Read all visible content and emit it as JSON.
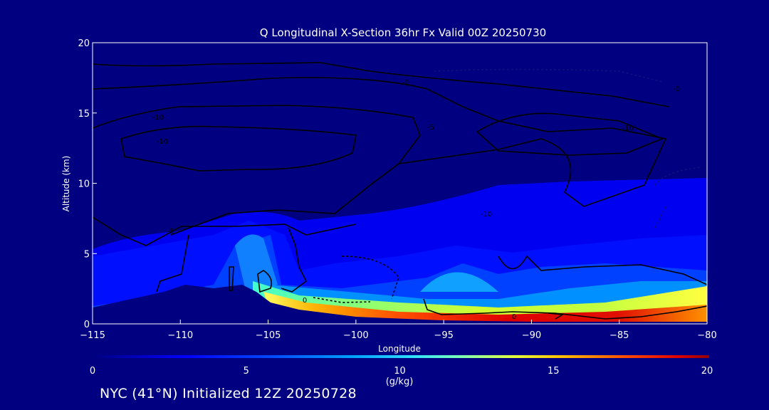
{
  "chart_data": {
    "type": "heatmap",
    "title": "Q Longitudinal X-Section 36hr  Fx Valid 00Z 20250730",
    "xlabel": "Longitude",
    "ylabel": "Altitude (km)",
    "xlim": [
      -115,
      -80
    ],
    "ylim": [
      0,
      20
    ],
    "x_ticks": [
      "-115",
      "-110",
      "-105",
      "-100",
      "-95",
      "-90",
      "-85",
      "-80"
    ],
    "y_ticks": [
      "0",
      "5",
      "10",
      "15",
      "20"
    ],
    "colorbar": {
      "label": "(g/kg)",
      "range": [
        0,
        20
      ],
      "ticks": [
        "0",
        "5",
        "10",
        "15",
        "20"
      ],
      "colors": [
        "#000080",
        "#0000ff",
        "#0060ff",
        "#00c0ff",
        "#40ffc0",
        "#c0ff40",
        "#ffd000",
        "#ff6000",
        "#e00000",
        "#800000"
      ]
    },
    "contour_labels": [
      "0",
      "0",
      "-0",
      "-5",
      "-10",
      "-10",
      "-10",
      "-10",
      "-5",
      "-0"
    ],
    "shading_mixing_ratio_g_per_kg": {
      "surface_band_-105_to_-80": [
        9,
        16,
        19
      ],
      "mid_level_peak_near_-106": 6,
      "near_-94_to_-92": 7
    }
  },
  "footer": "NYC (41°N) Initialized 12Z 20250728",
  "colors": {
    "background": "#000080",
    "text": "#ffffff",
    "contour": "#000000"
  }
}
